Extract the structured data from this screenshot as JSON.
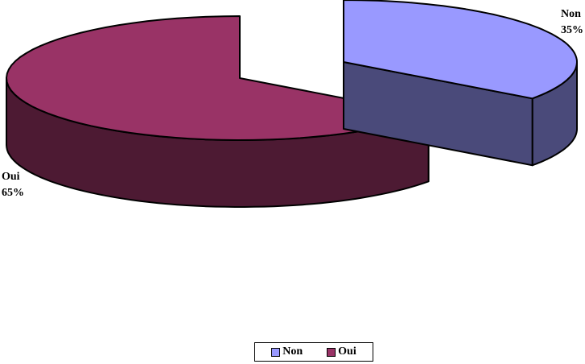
{
  "chart_data": {
    "type": "pie",
    "style": "3d-exploded",
    "title": "",
    "slices": [
      {
        "label": "Non",
        "value": 35,
        "value_label": "35%",
        "color": "#9999ff",
        "side_color": "#4a4a7a"
      },
      {
        "label": "Oui",
        "value": 65,
        "value_label": "65%",
        "color": "#993366",
        "side_color": "#4d1a33"
      }
    ],
    "legend": {
      "placement": "bottom",
      "entries": [
        "Non",
        "Oui"
      ]
    }
  }
}
